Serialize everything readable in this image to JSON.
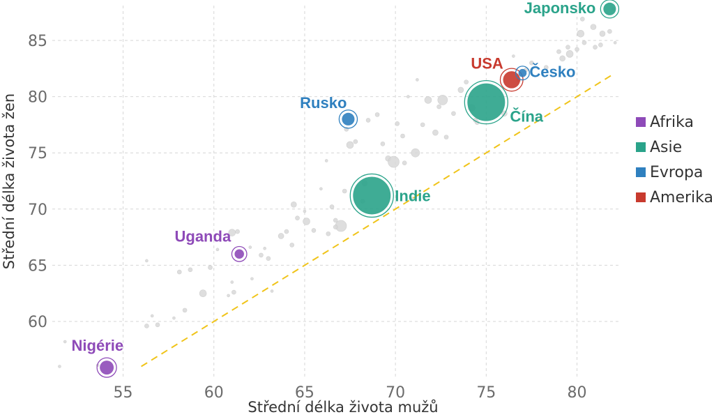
{
  "chart_data": {
    "type": "scatter",
    "xlabel": "Střední délka života mužů",
    "ylabel": "Střední délka života žen",
    "xlim": [
      51.1,
      82.4
    ],
    "ylim": [
      55.1,
      88.1
    ],
    "xticks": [
      55,
      60,
      65,
      70,
      75,
      80
    ],
    "yticks": [
      60,
      65,
      70,
      75,
      80,
      85
    ],
    "grid": true,
    "legend_position": "right",
    "legend": [
      {
        "name": "Afrika",
        "color": "#8e4ab8"
      },
      {
        "name": "Asie",
        "color": "#2aa38a"
      },
      {
        "name": "Evropa",
        "color": "#2f80bf"
      },
      {
        "name": "Amerika",
        "color": "#c83a2e"
      }
    ],
    "reference_line": {
      "type": "y=x",
      "from": 56,
      "to": 82,
      "color": "#f0c419"
    },
    "highlighted": [
      {
        "name": "Japonsko",
        "x": 81.8,
        "y": 87.8,
        "size": 1.1,
        "region": "Asie"
      },
      {
        "name": "USA",
        "x": 76.4,
        "y": 81.5,
        "size": 1.8,
        "region": "Amerika"
      },
      {
        "name": "Česko",
        "x": 77.0,
        "y": 82.1,
        "size": 0.4,
        "region": "Evropa"
      },
      {
        "name": "Čína",
        "x": 75.0,
        "y": 79.5,
        "size": 5,
        "region": "Asie"
      },
      {
        "name": "Rusko",
        "x": 67.4,
        "y": 78.0,
        "size": 1.1,
        "region": "Evropa"
      },
      {
        "name": "Indie",
        "x": 68.7,
        "y": 71.2,
        "size": 5,
        "region": "Asie"
      },
      {
        "name": "Uganda",
        "x": 61.4,
        "y": 66.0,
        "size": 0.6,
        "region": "Afrika"
      },
      {
        "name": "Nigérie",
        "x": 54.1,
        "y": 55.9,
        "size": 1.3,
        "region": "Afrika"
      }
    ],
    "background_points": [
      [
        51.5,
        56,
        2
      ],
      [
        51.8,
        58.2,
        2
      ],
      [
        53.6,
        56.1,
        2
      ],
      [
        56.3,
        59.6,
        3
      ],
      [
        56.6,
        60.5,
        2
      ],
      [
        56.9,
        59.7,
        3
      ],
      [
        56.3,
        65.4,
        2
      ],
      [
        57.8,
        60.3,
        2
      ],
      [
        58.1,
        64.4,
        3
      ],
      [
        58.4,
        61,
        3
      ],
      [
        58.7,
        64.6,
        3
      ],
      [
        59.4,
        62.5,
        5
      ],
      [
        59.8,
        64.8,
        3
      ],
      [
        60.2,
        66.4,
        2
      ],
      [
        61,
        63.5,
        2
      ],
      [
        61.1,
        62.6,
        3
      ],
      [
        61.0,
        67.9,
        5
      ],
      [
        61.3,
        68,
        3
      ],
      [
        62,
        66.6,
        2
      ],
      [
        62.6,
        65.9,
        3
      ],
      [
        62.8,
        66.5,
        2
      ],
      [
        63.0,
        65.6,
        3
      ],
      [
        63.7,
        67.6,
        4
      ],
      [
        64.0,
        68,
        3
      ],
      [
        64.4,
        70.4,
        4
      ],
      [
        64.6,
        69.2,
        3
      ],
      [
        65.0,
        69.8,
        2
      ],
      [
        65.1,
        68.9,
        5
      ],
      [
        65.9,
        71.8,
        2
      ],
      [
        66.5,
        70.2,
        3
      ],
      [
        66.3,
        67.8,
        3
      ],
      [
        67.0,
        68.5,
        8
      ],
      [
        66.2,
        74.3,
        2
      ],
      [
        67.2,
        71.6,
        3
      ],
      [
        67.3,
        77.1,
        3
      ],
      [
        67.5,
        75.7,
        5
      ],
      [
        67.8,
        76,
        3
      ],
      [
        68.3,
        72.3,
        4
      ],
      [
        68.2,
        70.7,
        3
      ],
      [
        69.0,
        78.4,
        3
      ],
      [
        69.6,
        74.5,
        4
      ],
      [
        69.9,
        74.2,
        8
      ],
      [
        70.1,
        77.6,
        3
      ],
      [
        70.4,
        76.5,
        3
      ],
      [
        70.7,
        80,
        2
      ],
      [
        71.1,
        75,
        6
      ],
      [
        71.2,
        81.5,
        2
      ],
      [
        71.5,
        77.5,
        3
      ],
      [
        71.8,
        79.7,
        5
      ],
      [
        72.2,
        76.8,
        4
      ],
      [
        72.6,
        79.7,
        7
      ],
      [
        72.8,
        76.4,
        3
      ],
      [
        73.2,
        78.5,
        3
      ],
      [
        73.6,
        80.6,
        4
      ],
      [
        73.9,
        81.3,
        3
      ],
      [
        74.4,
        77.9,
        3
      ],
      [
        74.2,
        79,
        5
      ],
      [
        76.0,
        78.5,
        4
      ],
      [
        76.8,
        81.5,
        3
      ],
      [
        77.2,
        82.4,
        3
      ],
      [
        77.5,
        83.0,
        3
      ],
      [
        78.3,
        82.6,
        3
      ],
      [
        79.0,
        84.0,
        3
      ],
      [
        79.2,
        83.4,
        4
      ],
      [
        79.5,
        84.4,
        3
      ],
      [
        79.6,
        83.8,
        5
      ],
      [
        80.0,
        84.2,
        3
      ],
      [
        80.2,
        85.6,
        5
      ],
      [
        80.4,
        84.8,
        3
      ],
      [
        80.9,
        86.2,
        4
      ],
      [
        81.0,
        84.4,
        3
      ],
      [
        81.3,
        84.6,
        3
      ],
      [
        81.4,
        85.6,
        4
      ],
      [
        81.8,
        85.8,
        3
      ],
      [
        82.1,
        84.8,
        2
      ],
      [
        80.3,
        86.9,
        3
      ],
      [
        82.0,
        87.8,
        2
      ],
      [
        76.5,
        83.6,
        2
      ],
      [
        74.5,
        77.7,
        3
      ],
      [
        72.4,
        79.1,
        3
      ],
      [
        70.5,
        74.1,
        3
      ],
      [
        70.9,
        70.9,
        3
      ],
      [
        68.5,
        77.9,
        3
      ],
      [
        69.3,
        75.8,
        3
      ],
      [
        66.7,
        69.0,
        3
      ],
      [
        65.5,
        68.1,
        3
      ],
      [
        64.3,
        66.8,
        3
      ],
      [
        63.2,
        62.7,
        2
      ],
      [
        62.1,
        63.8,
        2
      ],
      [
        60.8,
        62.3,
        2
      ],
      [
        66.7,
        68.4,
        3
      ]
    ]
  }
}
